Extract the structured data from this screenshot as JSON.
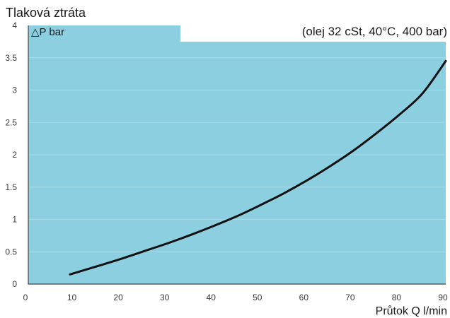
{
  "chart_data": {
    "type": "line",
    "title": "Tlaková ztráta",
    "ylabel": "△P bar",
    "subtitle": "(olej 32 cSt, 40°C, 400 bar)",
    "xlabel": "Průtok Q l/min",
    "xlim": [
      0,
      90
    ],
    "ylim": [
      0,
      4
    ],
    "x_ticks": [
      "0",
      "10",
      "20",
      "30",
      "40",
      "50",
      "60",
      "70",
      "80",
      "90"
    ],
    "y_ticks": [
      "0",
      "0.5",
      "1",
      "1.5",
      "2",
      "2.5",
      "3",
      "3.5",
      "4"
    ],
    "grid": true,
    "series": [
      {
        "x": [
          9,
          15,
          20,
          25,
          30,
          35,
          40,
          45,
          50,
          55,
          60,
          65,
          70,
          75,
          80,
          85,
          90
        ],
        "y": [
          0.15,
          0.28,
          0.39,
          0.51,
          0.63,
          0.76,
          0.9,
          1.05,
          1.22,
          1.4,
          1.6,
          1.82,
          2.06,
          2.33,
          2.62,
          2.95,
          3.45
        ]
      }
    ],
    "colors": {
      "plot_background": "#8ccfe0",
      "line": "#111111",
      "grid": "#a8dbe8",
      "text": "#1a1a1a"
    }
  }
}
